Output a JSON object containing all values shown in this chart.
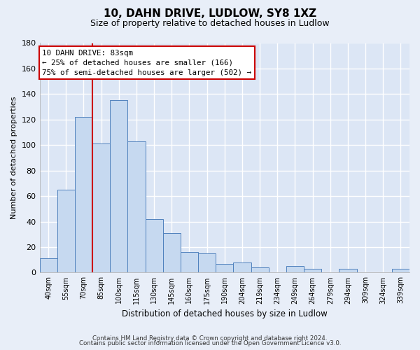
{
  "title": "10, DAHN DRIVE, LUDLOW, SY8 1XZ",
  "subtitle": "Size of property relative to detached houses in Ludlow",
  "xlabel": "Distribution of detached houses by size in Ludlow",
  "ylabel": "Number of detached properties",
  "bar_labels": [
    "40sqm",
    "55sqm",
    "70sqm",
    "85sqm",
    "100sqm",
    "115sqm",
    "130sqm",
    "145sqm",
    "160sqm",
    "175sqm",
    "190sqm",
    "204sqm",
    "219sqm",
    "234sqm",
    "249sqm",
    "264sqm",
    "279sqm",
    "294sqm",
    "309sqm",
    "324sqm",
    "339sqm"
  ],
  "bar_values": [
    11,
    65,
    122,
    101,
    135,
    103,
    42,
    31,
    16,
    15,
    7,
    8,
    4,
    0,
    5,
    3,
    0,
    3,
    0,
    0,
    3
  ],
  "bar_color": "#c6d9f0",
  "bar_edge_color": "#4f81bd",
  "ylim": [
    0,
    180
  ],
  "yticks": [
    0,
    20,
    40,
    60,
    80,
    100,
    120,
    140,
    160,
    180
  ],
  "property_line_color": "#cc0000",
  "annotation_title": "10 DAHN DRIVE: 83sqm",
  "annotation_line1": "← 25% of detached houses are smaller (166)",
  "annotation_line2": "75% of semi-detached houses are larger (502) →",
  "annotation_box_color": "#ffffff",
  "annotation_box_edge": "#cc0000",
  "footer1": "Contains HM Land Registry data © Crown copyright and database right 2024.",
  "footer2": "Contains public sector information licensed under the Open Government Licence v3.0.",
  "bg_color": "#e8eef8",
  "plot_bg_color": "#dce6f5",
  "grid_color": "#ffffff"
}
